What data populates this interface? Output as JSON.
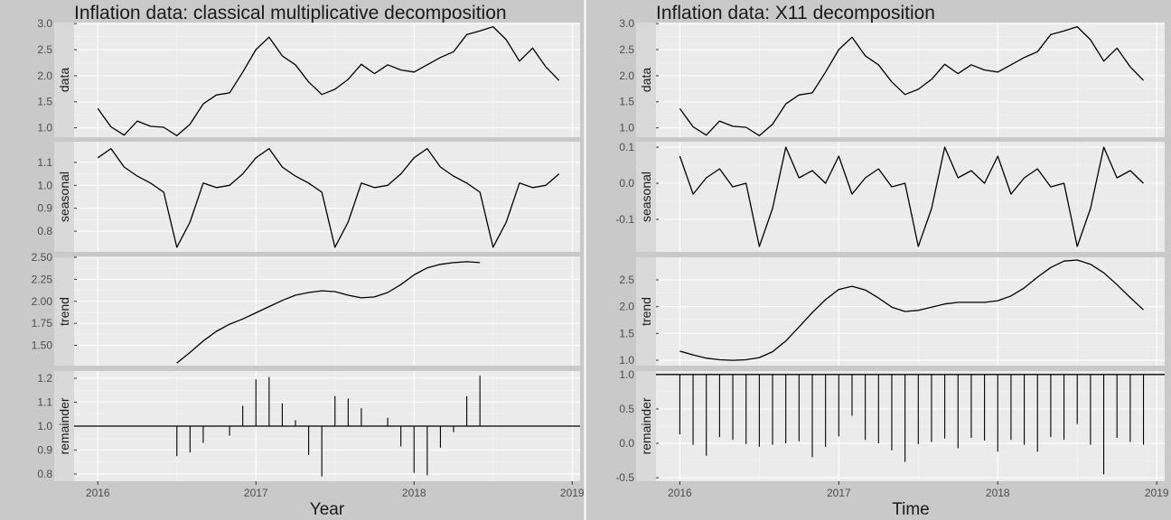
{
  "chart_data": [
    {
      "type": "line",
      "title": "Inflation data: classical multiplicative decomposition",
      "xlabel": "Year",
      "x_ticks": [
        "2016",
        "2017",
        "2018",
        "2019"
      ],
      "xlim": [
        2015.85,
        2019.05
      ],
      "x_start": 2016.0,
      "x_step": 0.0833333,
      "facets": [
        {
          "name": "data",
          "kind": "line",
          "ylim": [
            0.82,
            3.02
          ],
          "ticks": [
            1.0,
            1.5,
            2.0,
            2.5,
            3.0
          ],
          "tick_labels": [
            "1.0",
            "1.5",
            "2.0",
            "2.5",
            "3.0"
          ],
          "values": [
            1.37,
            1.02,
            0.86,
            1.13,
            1.03,
            1.01,
            0.85,
            1.07,
            1.46,
            1.63,
            1.67,
            2.07,
            2.5,
            2.74,
            2.38,
            2.21,
            1.88,
            1.64,
            1.74,
            1.93,
            2.22,
            2.04,
            2.21,
            2.11,
            2.07,
            2.21,
            2.35,
            2.46,
            2.79,
            2.86,
            2.94,
            2.69,
            2.28,
            2.53,
            2.17,
            1.91
          ]
        },
        {
          "name": "seasonal",
          "kind": "line",
          "ylim": [
            0.71,
            1.19
          ],
          "ticks": [
            0.8,
            0.9,
            1.0,
            1.1
          ],
          "tick_labels": [
            "0.8",
            "0.9",
            "1.0",
            "1.1"
          ],
          "values": [
            1.12,
            1.16,
            1.08,
            1.04,
            1.01,
            0.97,
            0.73,
            0.84,
            1.01,
            0.99,
            1.0,
            1.05,
            1.12,
            1.16,
            1.08,
            1.04,
            1.01,
            0.97,
            0.73,
            0.84,
            1.01,
            0.99,
            1.0,
            1.05,
            1.12,
            1.16,
            1.08,
            1.04,
            1.01,
            0.97,
            0.73,
            0.84,
            1.01,
            0.99,
            1.0,
            1.05
          ]
        },
        {
          "name": "trend",
          "kind": "line",
          "ylim": [
            1.27,
            2.5
          ],
          "ticks": [
            1.5,
            1.75,
            2.0,
            2.25,
            2.5
          ],
          "tick_labels": [
            "1.50",
            "1.75",
            "2.00",
            "2.25",
            "2.50"
          ],
          "values": [
            null,
            null,
            null,
            null,
            null,
            null,
            1.3,
            1.42,
            1.55,
            1.66,
            1.74,
            1.8,
            1.87,
            1.94,
            2.01,
            2.07,
            2.1,
            2.12,
            2.11,
            2.07,
            2.04,
            2.05,
            2.1,
            2.19,
            2.3,
            2.38,
            2.42,
            2.44,
            2.45,
            2.44,
            null,
            null,
            null,
            null,
            null,
            null
          ]
        },
        {
          "name": "remainder",
          "kind": "bars",
          "baseline": 1.0,
          "ylim": [
            0.77,
            1.23
          ],
          "ticks": [
            0.8,
            0.9,
            1.0,
            1.1,
            1.2
          ],
          "tick_labels": [
            "0.8",
            "0.9",
            "1.0",
            "1.1",
            "1.2"
          ],
          "values": [
            null,
            null,
            null,
            null,
            null,
            null,
            0.875,
            0.89,
            0.93,
            1.0,
            0.96,
            1.085,
            1.195,
            1.205,
            1.095,
            1.025,
            0.88,
            0.79,
            1.125,
            1.115,
            1.075,
            1.0,
            1.035,
            0.915,
            0.805,
            0.795,
            0.91,
            0.975,
            1.125,
            1.21,
            null,
            null,
            null,
            null,
            null,
            null
          ]
        }
      ]
    },
    {
      "type": "line",
      "title": "Inflation data: X11 decomposition",
      "xlabel": "Time",
      "x_ticks": [
        "2016",
        "2017",
        "2018",
        "2019"
      ],
      "xlim": [
        2015.85,
        2019.05
      ],
      "x_start": 2016.0,
      "x_step": 0.0833333,
      "facets": [
        {
          "name": "data",
          "kind": "line",
          "ylim": [
            0.82,
            3.02
          ],
          "ticks": [
            1.0,
            1.5,
            2.0,
            2.5,
            3.0
          ],
          "tick_labels": [
            "1.0",
            "1.5",
            "2.0",
            "2.5",
            "3.0"
          ],
          "values": [
            1.37,
            1.02,
            0.86,
            1.13,
            1.03,
            1.01,
            0.85,
            1.07,
            1.46,
            1.63,
            1.67,
            2.07,
            2.5,
            2.74,
            2.38,
            2.21,
            1.88,
            1.64,
            1.74,
            1.93,
            2.22,
            2.04,
            2.21,
            2.11,
            2.07,
            2.21,
            2.35,
            2.46,
            2.79,
            2.86,
            2.94,
            2.69,
            2.28,
            2.53,
            2.17,
            1.91
          ]
        },
        {
          "name": "seasonal",
          "kind": "line",
          "ylim": [
            -0.19,
            0.115
          ],
          "ticks": [
            -0.1,
            0.0,
            0.1
          ],
          "tick_labels": [
            "-0.1",
            "0.0",
            "0.1"
          ],
          "values": [
            0.075,
            -0.03,
            0.015,
            0.04,
            -0.01,
            0.0,
            -0.175,
            -0.07,
            0.1,
            0.015,
            0.035,
            0.0,
            0.075,
            -0.03,
            0.015,
            0.04,
            -0.01,
            0.0,
            -0.175,
            -0.07,
            0.1,
            0.015,
            0.035,
            0.0,
            0.075,
            -0.03,
            0.015,
            0.04,
            -0.01,
            0.0,
            -0.175,
            -0.07,
            0.1,
            0.015,
            0.035,
            0.0
          ]
        },
        {
          "name": "trend",
          "kind": "line",
          "ylim": [
            0.9,
            2.92
          ],
          "ticks": [
            1.0,
            1.5,
            2.0,
            2.5
          ],
          "tick_labels": [
            "1.0",
            "1.5",
            "2.0",
            "2.5"
          ],
          "values": [
            1.17,
            1.1,
            1.04,
            1.01,
            1.0,
            1.01,
            1.05,
            1.16,
            1.36,
            1.62,
            1.89,
            2.13,
            2.32,
            2.38,
            2.31,
            2.16,
            1.99,
            1.91,
            1.93,
            1.99,
            2.05,
            2.08,
            2.08,
            2.08,
            2.11,
            2.2,
            2.35,
            2.55,
            2.73,
            2.85,
            2.87,
            2.79,
            2.63,
            2.41,
            2.17,
            1.94
          ]
        },
        {
          "name": "remainder",
          "kind": "bars",
          "baseline": 1.0,
          "ylim": [
            -0.55,
            1.05
          ],
          "ticks": [
            -0.5,
            0.0,
            0.5,
            1.0
          ],
          "tick_labels": [
            "-0.5",
            "0.0",
            "0.5",
            "1.0"
          ],
          "values": [
            0.13,
            -0.02,
            -0.18,
            0.09,
            0.05,
            -0.01,
            -0.05,
            -0.02,
            0.0,
            0.03,
            -0.2,
            -0.05,
            0.1,
            0.4,
            0.05,
            0.0,
            -0.1,
            -0.27,
            -0.01,
            0.02,
            0.07,
            -0.07,
            0.08,
            0.04,
            -0.12,
            0.05,
            -0.02,
            -0.12,
            0.09,
            0.05,
            0.28,
            -0.02,
            -0.45,
            0.08,
            0.02,
            -0.02
          ]
        }
      ]
    }
  ]
}
